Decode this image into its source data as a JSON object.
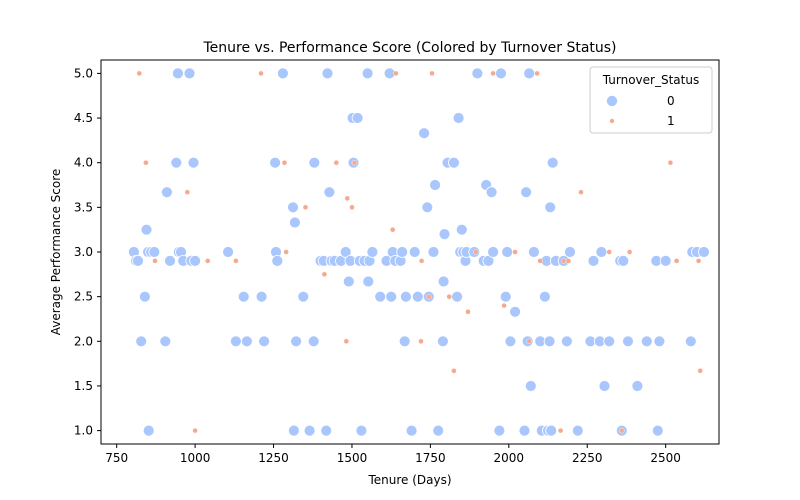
{
  "chart_data": {
    "type": "scatter",
    "title": "Tenure vs. Performance Score (Colored by Turnover Status)",
    "xlabel": "Tenure (Days)",
    "ylabel": "Average Performance Score",
    "xlim": [
      700,
      2670
    ],
    "ylim": [
      0.85,
      5.15
    ],
    "xticks": [
      750,
      1000,
      1250,
      1500,
      1750,
      2000,
      2250,
      2500
    ],
    "yticks": [
      1.0,
      1.5,
      2.0,
      2.5,
      3.0,
      3.5,
      4.0,
      4.5,
      5.0
    ],
    "ytick_labels": [
      "1.0",
      "1.5",
      "2.0",
      "2.5",
      "3.0",
      "3.5",
      "4.0",
      "4.5",
      "5.0"
    ],
    "grid": false,
    "legend": {
      "title": "Turnover_Status",
      "placement": "top-right"
    },
    "series": [
      {
        "name": "0",
        "color": "#aac7fd",
        "points": [
          [
            805,
            3.0
          ],
          [
            812,
            2.9
          ],
          [
            818,
            2.9
          ],
          [
            828,
            2.0
          ],
          [
            840,
            2.5
          ],
          [
            845,
            3.25
          ],
          [
            850,
            3.0
          ],
          [
            852,
            1.0
          ],
          [
            860,
            3.0
          ],
          [
            870,
            3.0
          ],
          [
            905,
            2.0
          ],
          [
            910,
            3.67
          ],
          [
            920,
            2.9
          ],
          [
            940,
            4.0
          ],
          [
            945,
            5.0
          ],
          [
            948,
            3.0
          ],
          [
            955,
            3.0
          ],
          [
            962,
            2.9
          ],
          [
            982,
            5.0
          ],
          [
            988,
            2.9
          ],
          [
            995,
            4.0
          ],
          [
            1000,
            2.9
          ],
          [
            1105,
            3.0
          ],
          [
            1130,
            2.0
          ],
          [
            1155,
            2.5
          ],
          [
            1165,
            2.0
          ],
          [
            1212,
            2.5
          ],
          [
            1220,
            2.0
          ],
          [
            1255,
            4.0
          ],
          [
            1258,
            3.0
          ],
          [
            1262,
            2.9
          ],
          [
            1280,
            5.0
          ],
          [
            1312,
            3.5
          ],
          [
            1315,
            1.0
          ],
          [
            1318,
            3.33
          ],
          [
            1322,
            2.0
          ],
          [
            1345,
            2.5
          ],
          [
            1365,
            1.0
          ],
          [
            1378,
            2.0
          ],
          [
            1380,
            4.0
          ],
          [
            1400,
            2.9
          ],
          [
            1410,
            2.9
          ],
          [
            1418,
            1.0
          ],
          [
            1422,
            5.0
          ],
          [
            1428,
            3.67
          ],
          [
            1435,
            2.9
          ],
          [
            1445,
            2.9
          ],
          [
            1465,
            2.9
          ],
          [
            1480,
            3.0
          ],
          [
            1490,
            2.67
          ],
          [
            1495,
            2.9
          ],
          [
            1502,
            4.5
          ],
          [
            1505,
            4.0
          ],
          [
            1518,
            4.5
          ],
          [
            1525,
            2.9
          ],
          [
            1530,
            1.0
          ],
          [
            1540,
            2.9
          ],
          [
            1550,
            5.0
          ],
          [
            1552,
            2.67
          ],
          [
            1556,
            2.9
          ],
          [
            1565,
            3.0
          ],
          [
            1590,
            2.5
          ],
          [
            1610,
            2.9
          ],
          [
            1620,
            5.0
          ],
          [
            1625,
            2.5
          ],
          [
            1630,
            3.0
          ],
          [
            1638,
            2.9
          ],
          [
            1655,
            2.9
          ],
          [
            1660,
            3.0
          ],
          [
            1668,
            2.0
          ],
          [
            1672,
            2.5
          ],
          [
            1690,
            1.0
          ],
          [
            1700,
            3.0
          ],
          [
            1710,
            2.5
          ],
          [
            1730,
            4.33
          ],
          [
            1740,
            3.5
          ],
          [
            1745,
            2.5
          ],
          [
            1760,
            3.0
          ],
          [
            1765,
            3.75
          ],
          [
            1775,
            1.0
          ],
          [
            1790,
            2.0
          ],
          [
            1792,
            2.67
          ],
          [
            1795,
            3.2
          ],
          [
            1805,
            4.0
          ],
          [
            1825,
            4.0
          ],
          [
            1835,
            2.5
          ],
          [
            1840,
            4.5
          ],
          [
            1845,
            3.0
          ],
          [
            1850,
            3.25
          ],
          [
            1855,
            3.0
          ],
          [
            1862,
            2.9
          ],
          [
            1865,
            3.0
          ],
          [
            1890,
            3.0
          ],
          [
            1900,
            5.0
          ],
          [
            1920,
            2.9
          ],
          [
            1928,
            3.75
          ],
          [
            1935,
            2.9
          ],
          [
            1945,
            3.67
          ],
          [
            1950,
            3.0
          ],
          [
            1970,
            1.0
          ],
          [
            1975,
            5.0
          ],
          [
            1990,
            2.5
          ],
          [
            1995,
            3.0
          ],
          [
            2005,
            2.0
          ],
          [
            2020,
            2.33
          ],
          [
            2050,
            1.0
          ],
          [
            2055,
            3.67
          ],
          [
            2060,
            2.0
          ],
          [
            2065,
            5.0
          ],
          [
            2070,
            1.5
          ],
          [
            2080,
            3.0
          ],
          [
            2100,
            2.0
          ],
          [
            2105,
            1.0
          ],
          [
            2115,
            2.5
          ],
          [
            2120,
            2.9
          ],
          [
            2125,
            1.0
          ],
          [
            2130,
            2.0
          ],
          [
            2132,
            3.5
          ],
          [
            2135,
            1.0
          ],
          [
            2140,
            4.0
          ],
          [
            2150,
            2.9
          ],
          [
            2175,
            2.9
          ],
          [
            2185,
            2.0
          ],
          [
            2195,
            3.0
          ],
          [
            2220,
            1.0
          ],
          [
            2260,
            2.0
          ],
          [
            2270,
            2.9
          ],
          [
            2290,
            2.0
          ],
          [
            2295,
            3.0
          ],
          [
            2305,
            1.5
          ],
          [
            2320,
            2.0
          ],
          [
            2355,
            2.9
          ],
          [
            2360,
            1.0
          ],
          [
            2365,
            2.9
          ],
          [
            2380,
            2.0
          ],
          [
            2410,
            1.5
          ],
          [
            2440,
            2.0
          ],
          [
            2470,
            2.9
          ],
          [
            2475,
            1.0
          ],
          [
            2480,
            2.0
          ],
          [
            2500,
            2.9
          ],
          [
            2580,
            2.0
          ],
          [
            2585,
            3.0
          ],
          [
            2600,
            3.0
          ],
          [
            2622,
            3.0
          ]
        ]
      },
      {
        "name": "1",
        "color": "#f5a98f",
        "points": [
          [
            822,
            5.0
          ],
          [
            843,
            4.0
          ],
          [
            872,
            2.9
          ],
          [
            975,
            3.67
          ],
          [
            1000,
            1.0
          ],
          [
            1040,
            2.9
          ],
          [
            1130,
            2.9
          ],
          [
            1210,
            5.0
          ],
          [
            1285,
            4.0
          ],
          [
            1290,
            3.0
          ],
          [
            1352,
            3.5
          ],
          [
            1412,
            2.75
          ],
          [
            1450,
            4.0
          ],
          [
            1482,
            2.0
          ],
          [
            1485,
            3.6
          ],
          [
            1500,
            3.5
          ],
          [
            1508,
            4.0
          ],
          [
            1630,
            3.25
          ],
          [
            1640,
            5.0
          ],
          [
            1720,
            2.0
          ],
          [
            1722,
            2.9
          ],
          [
            1745,
            2.5
          ],
          [
            1755,
            5.0
          ],
          [
            1810,
            2.5
          ],
          [
            1825,
            1.67
          ],
          [
            1870,
            2.33
          ],
          [
            1895,
            3.0
          ],
          [
            1950,
            5.0
          ],
          [
            1985,
            2.4
          ],
          [
            2020,
            3.0
          ],
          [
            2065,
            2.0
          ],
          [
            2090,
            5.0
          ],
          [
            2100,
            2.9
          ],
          [
            2165,
            1.0
          ],
          [
            2175,
            2.9
          ],
          [
            2190,
            2.9
          ],
          [
            2230,
            3.67
          ],
          [
            2320,
            3.0
          ],
          [
            2360,
            1.0
          ],
          [
            2385,
            3.0
          ],
          [
            2515,
            4.0
          ],
          [
            2535,
            2.9
          ],
          [
            2605,
            2.9
          ],
          [
            2610,
            1.67
          ]
        ]
      }
    ]
  }
}
